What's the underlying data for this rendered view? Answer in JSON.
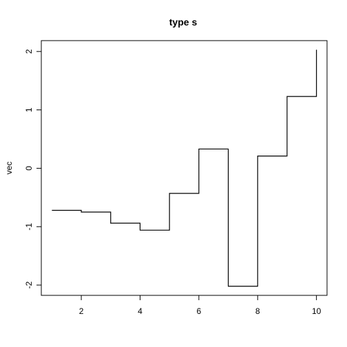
{
  "chart_data": {
    "type": "line",
    "step_type": "s",
    "title": "type s",
    "xlabel": "",
    "ylabel": "vec",
    "x": [
      1,
      2,
      3,
      4,
      5,
      6,
      7,
      8,
      9,
      10
    ],
    "values": [
      -0.72,
      -0.75,
      -0.94,
      -1.06,
      -0.43,
      0.33,
      -2.02,
      0.21,
      1.23,
      2.03
    ],
    "x_ticks": [
      2,
      4,
      6,
      8,
      10
    ],
    "y_ticks": [
      -2,
      -1,
      0,
      1,
      2
    ],
    "xlim": [
      0.64,
      10.36
    ],
    "ylim": [
      -2.1764,
      2.1864
    ],
    "grid": false,
    "legend": "none",
    "line_color": "#000000"
  }
}
